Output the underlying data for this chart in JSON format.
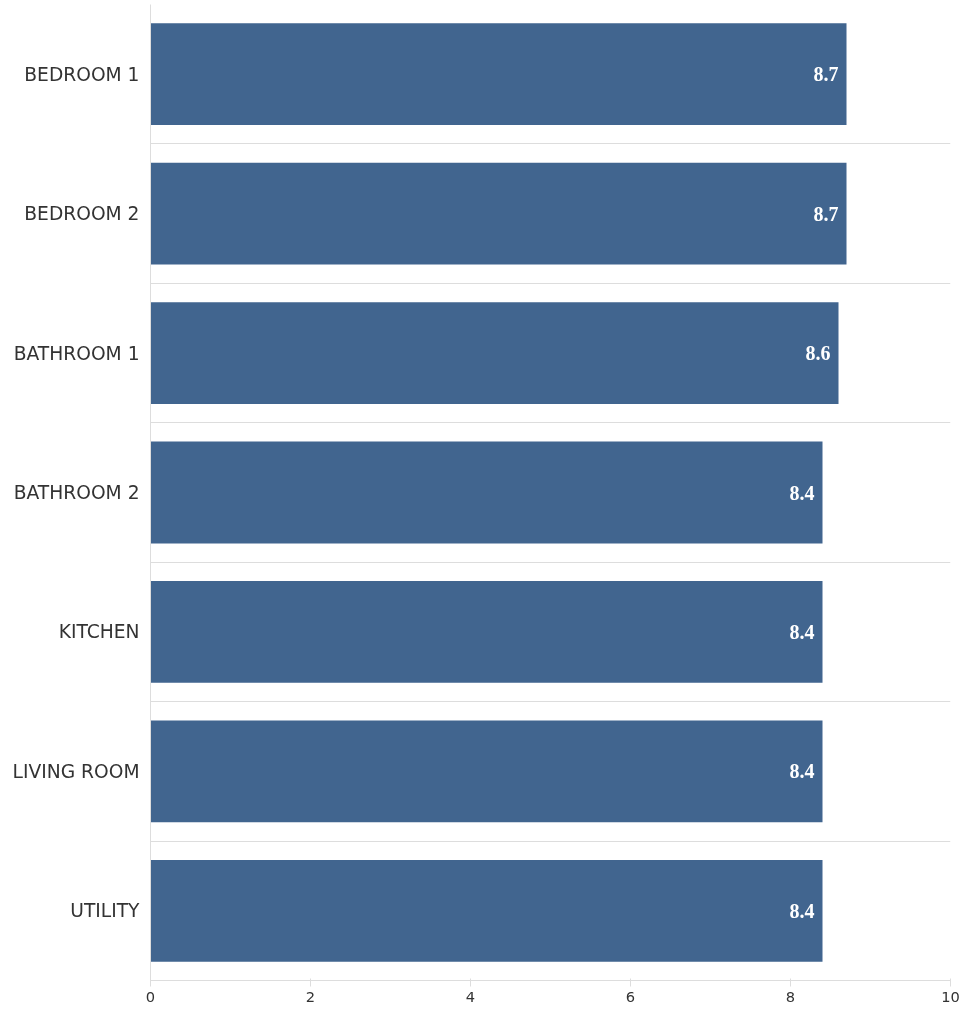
{
  "chart_data": {
    "type": "bar",
    "orientation": "horizontal",
    "categories": [
      "BEDROOM 1",
      "BEDROOM 2",
      "BATHROOM 1",
      "BATHROOM 2",
      "KITCHEN",
      "LIVING ROOM",
      "UTILITY"
    ],
    "values": [
      8.7,
      8.7,
      8.6,
      8.4,
      8.4,
      8.4,
      8.4
    ],
    "color": "#41658f",
    "xlim": [
      0,
      10
    ],
    "xticks": [
      0,
      2,
      4,
      6,
      8,
      10
    ],
    "grid": "y",
    "data_labels": true
  }
}
